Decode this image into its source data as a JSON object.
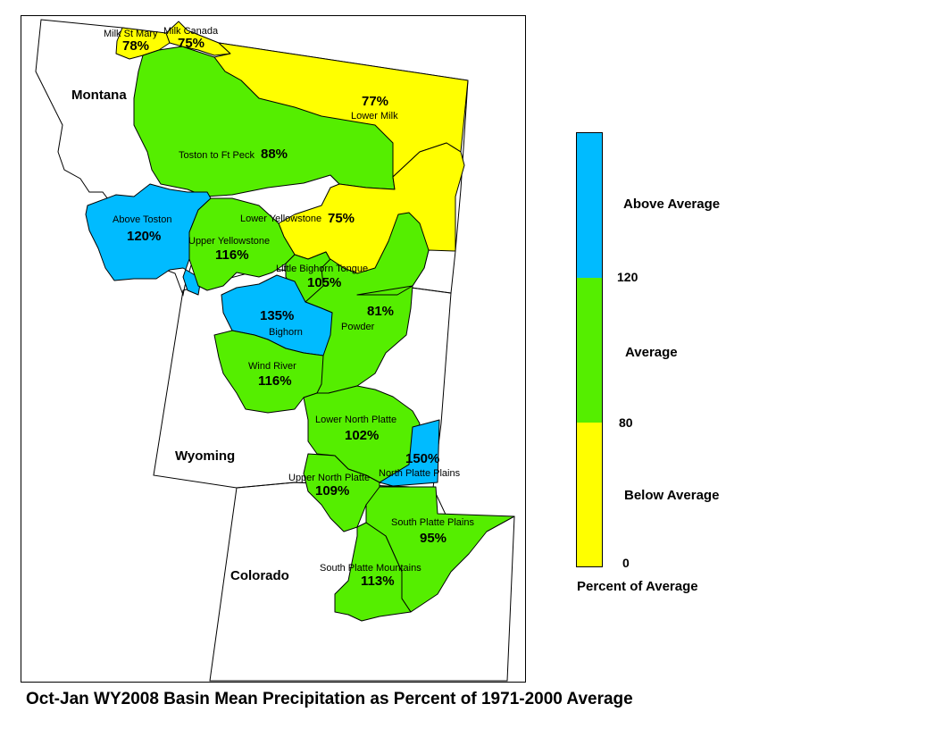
{
  "title": "Oct-Jan WY2008 Basin Mean Precipitation as Percent of 1971-2000 Average",
  "colors": {
    "below": "#ffff00",
    "average": "#55ee00",
    "above": "#00bbff",
    "outline": "#000000"
  },
  "states": {
    "montana": "Montana",
    "wyoming": "Wyoming",
    "colorado": "Colorado"
  },
  "basins": [
    {
      "id": "milk-st-mary",
      "name": "Milk St Mary",
      "pct": "78%",
      "value": 78,
      "category": "below"
    },
    {
      "id": "milk-canada",
      "name": "Milk Canada",
      "pct": "75%",
      "value": 75,
      "category": "below"
    },
    {
      "id": "lower-milk",
      "name": "Lower Milk",
      "pct": "77%",
      "value": 77,
      "category": "below"
    },
    {
      "id": "toston-ft-peck",
      "name": "Toston to Ft Peck",
      "pct": "88%",
      "value": 88,
      "category": "average"
    },
    {
      "id": "above-toston",
      "name": "Above Toston",
      "pct": "120%",
      "value": 120,
      "category": "above"
    },
    {
      "id": "lower-yellowstone",
      "name": "Lower Yellowstone",
      "pct": "75%",
      "value": 75,
      "category": "below"
    },
    {
      "id": "upper-yellowstone",
      "name": "Upper Yellowstone",
      "pct": "116%",
      "value": 116,
      "category": "average"
    },
    {
      "id": "little-bighorn-tongue",
      "name": "Little Bighorn Tongue",
      "pct": "105%",
      "value": 105,
      "category": "average"
    },
    {
      "id": "bighorn",
      "name": "Bighorn",
      "pct": "135%",
      "value": 135,
      "category": "above"
    },
    {
      "id": "powder",
      "name": "Powder",
      "pct": "81%",
      "value": 81,
      "category": "average"
    },
    {
      "id": "wind-river",
      "name": "Wind River",
      "pct": "116%",
      "value": 116,
      "category": "average"
    },
    {
      "id": "lower-north-platte",
      "name": "Lower North Platte",
      "pct": "102%",
      "value": 102,
      "category": "average"
    },
    {
      "id": "north-platte-plains",
      "name": "North Platte Plains",
      "pct": "150%",
      "value": 150,
      "category": "above"
    },
    {
      "id": "upper-north-platte",
      "name": "Upper North Platte",
      "pct": "109%",
      "value": 109,
      "category": "average"
    },
    {
      "id": "south-platte-plains",
      "name": "South Platte Plains",
      "pct": "95%",
      "value": 95,
      "category": "average"
    },
    {
      "id": "south-platte-mountains",
      "name": "South Platte Mountains",
      "pct": "113%",
      "value": 113,
      "category": "average"
    }
  ],
  "legend": {
    "above_label": "Above Average",
    "average_label": "Average",
    "below_label": "Below Average",
    "tick_high": "120",
    "tick_mid": "80",
    "tick_low": "0",
    "caption": "Percent of Average"
  }
}
